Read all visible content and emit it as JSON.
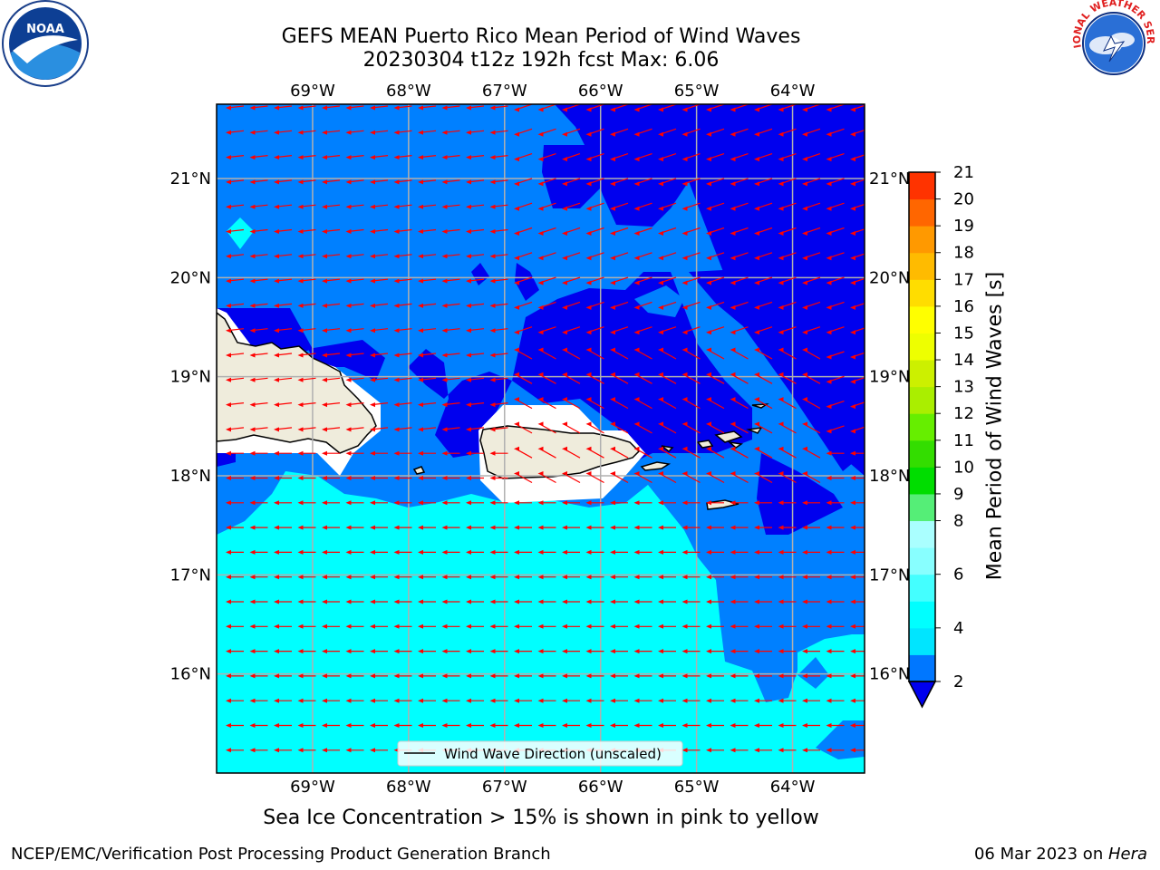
{
  "title_line1": "GEFS MEAN Puerto Rico Mean Period of Wind Waves",
  "title_line2": "20230304 t12z 192h fcst   Max: 6.06",
  "bottom_note": "Sea Ice Concentration > 15% is shown in pink to yellow",
  "footer_left": "NCEP/EMC/Verification Post Processing Product Generation Branch",
  "footer_date": "06 Mar 2023 on ",
  "footer_host": "Hera",
  "legend_label": "Wind Wave Direction (unscaled)",
  "colorbar_label": "Mean Period of Wind Waves [s]",
  "logos": {
    "left": "NOAA",
    "right": "NATIONAL WEATHER SERVICE"
  },
  "chart_data": {
    "type": "heatmap",
    "lon_ticks": [
      "69°W",
      "68°W",
      "67°W",
      "66°W",
      "65°W",
      "64°W"
    ],
    "lat_ticks": [
      "21°N",
      "20°N",
      "19°N",
      "18°N",
      "17°N",
      "16°N"
    ],
    "lon_values": [
      -69,
      -68,
      -67,
      -66,
      -65,
      -64
    ],
    "lat_values": [
      21,
      20,
      19,
      18,
      17,
      16
    ],
    "xlim": [
      -70.0,
      -63.25
    ],
    "ylim": [
      15.0,
      21.75
    ],
    "grid": true,
    "colorbar": {
      "levels": [
        2,
        3,
        4,
        5,
        6,
        7,
        8,
        9,
        10,
        11,
        12,
        13,
        14,
        15,
        16,
        17,
        18,
        19,
        20,
        21
      ],
      "tick_labels": [
        "2",
        "4",
        "6",
        "8",
        "9",
        "10",
        "11",
        "12",
        "13",
        "14",
        "15",
        "16",
        "17",
        "18",
        "19",
        "20",
        "21"
      ],
      "colors": [
        "#0077ff",
        "#00e5ff",
        "#00ffff",
        "#44ffff",
        "#88ffff",
        "#aaffff",
        "#55ee77",
        "#00dd00",
        "#33dd00",
        "#66ee00",
        "#aaee00",
        "#ccf000",
        "#eeff00",
        "#ffff00",
        "#ffdd00",
        "#ffbb00",
        "#ff9900",
        "#ff6600",
        "#ff3300",
        "#ff0000"
      ],
      "under_color": "#0000ee"
    },
    "colors": {
      "under2": "#0000ee",
      "p2_4": "#0080ff",
      "p4_6": "#00ffff",
      "land": "#efecdc",
      "arrow": "#ff0000",
      "grid": "#b0b0b0"
    },
    "max_value": 6.06,
    "wind_direction": "toward west (easterly trade winds)"
  }
}
